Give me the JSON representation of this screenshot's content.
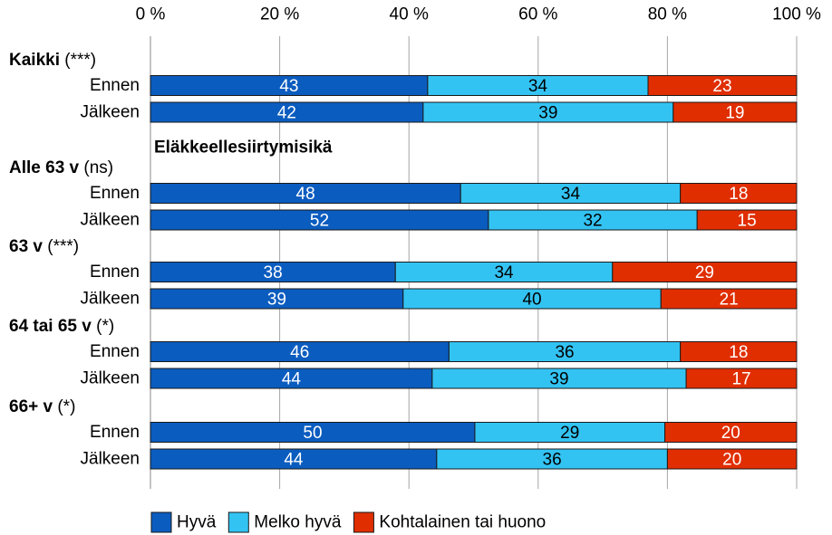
{
  "chart_data": {
    "type": "stacked_barh",
    "annotation": "Eläkkeellesiirtymisikä",
    "groups": [
      {
        "label": "Kaikki",
        "note": "(***)",
        "categories": [
          "Ennen",
          "Jälkeen"
        ]
      },
      {
        "label": "Alle 63 v",
        "note": "(ns)",
        "categories": [
          "Ennen",
          "Jälkeen"
        ]
      },
      {
        "label": "63 v",
        "note": "(***)",
        "categories": [
          "Ennen",
          "Jälkeen"
        ]
      },
      {
        "label": "64 tai 65 v",
        "note": "(*)",
        "categories": [
          "Ennen",
          "Jälkeen"
        ]
      },
      {
        "label": "66+ v",
        "note": "(*)",
        "categories": [
          "Ennen",
          "Jälkeen"
        ]
      }
    ],
    "series": [
      {
        "name": "Hyvä",
        "color": "#0b5cbf",
        "label_color": "#ffffff",
        "values": [
          42.9,
          42.2,
          48.0,
          52.3,
          37.9,
          39.1,
          46.2,
          43.6,
          50.2,
          44.3
        ],
        "value_labels": [
          "43",
          "42",
          "48",
          "52",
          "38",
          "39",
          "46",
          "44",
          "50",
          "44"
        ]
      },
      {
        "name": "Melko hyvä",
        "color": "#33c3f3",
        "label_color": "#000000",
        "values": [
          34.1,
          38.7,
          34.0,
          32.3,
          33.6,
          39.9,
          35.8,
          39.3,
          29.4,
          35.7
        ],
        "value_labels": [
          "34",
          "39",
          "34",
          "32",
          "34",
          "40",
          "36",
          "39",
          "29",
          "36"
        ]
      },
      {
        "name": "Kohtalainen tai huono",
        "color": "#e02e00",
        "label_color": "#ffffff",
        "values": [
          23.0,
          19.1,
          18.0,
          15.4,
          28.5,
          21.0,
          18.0,
          17.1,
          20.4,
          20.0
        ],
        "value_labels": [
          "23",
          "19",
          "18",
          "15",
          "29",
          "21",
          "18",
          "17",
          "20",
          "20"
        ]
      }
    ],
    "xlim": [
      0,
      100
    ],
    "xticks": [
      {
        "value": 0,
        "label": "0 %"
      },
      {
        "value": 20,
        "label": "20 %"
      },
      {
        "value": 40,
        "label": "40 %"
      },
      {
        "value": 60,
        "label": "60 %"
      },
      {
        "value": 80,
        "label": "80 %"
      },
      {
        "value": 100,
        "label": "100 %"
      }
    ],
    "grid": true
  }
}
